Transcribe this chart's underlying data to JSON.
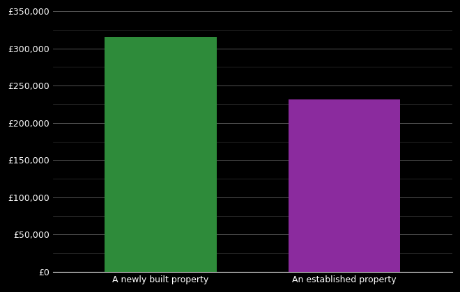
{
  "categories": [
    "A newly built property",
    "An established property"
  ],
  "values": [
    316000,
    232000
  ],
  "bar_colors": [
    "#2e8b3a",
    "#8b2b9e"
  ],
  "background_color": "#000000",
  "text_color": "#ffffff",
  "grid_color": "#555555",
  "minor_grid_color": "#333333",
  "ylim": [
    0,
    350000
  ],
  "ytick_major_step": 50000,
  "ytick_minor_step": 25000,
  "bar_width": 0.28,
  "x_positions": [
    0.27,
    0.73
  ],
  "xlim": [
    0.0,
    1.0
  ]
}
